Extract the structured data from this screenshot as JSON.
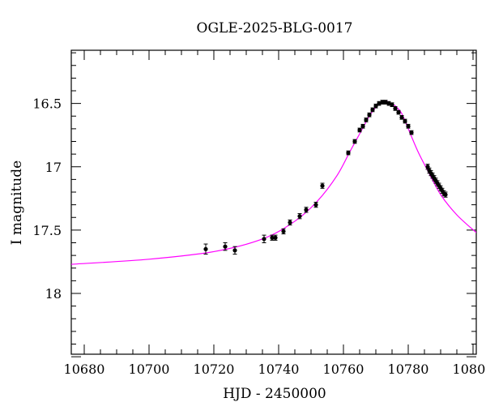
{
  "chart_data": {
    "type": "scatter",
    "title": "OGLE-2025-BLG-0017",
    "xlabel": "HJD - 2450000",
    "ylabel": "I magnitude",
    "xlim": [
      10676,
      10801
    ],
    "ylim": [
      18.48,
      16.08
    ],
    "y_inverted": true,
    "x_ticks": [
      10680,
      10700,
      10720,
      10740,
      10760,
      10780,
      10800
    ],
    "x_tick_labels": [
      "10680",
      "10700",
      "10720",
      "10740",
      "10760",
      "10780",
      "10800"
    ],
    "y_ticks": [
      16.5,
      17,
      17.5,
      18
    ],
    "y_tick_labels": [
      "16.5",
      "17",
      "17.5",
      "18"
    ],
    "grid": false,
    "colors": {
      "data": "#000000",
      "model": "#ff00ff"
    },
    "model": {
      "name": "",
      "x": [
        10676,
        10700,
        10720,
        10735,
        10745,
        10752,
        10758,
        10762,
        10765,
        10768,
        10770,
        10772,
        10773,
        10774,
        10776,
        10778,
        10780,
        10783,
        10786,
        10790,
        10795,
        10801
      ],
      "y": [
        17.77,
        17.73,
        17.67,
        17.57,
        17.43,
        17.27,
        17.07,
        16.88,
        16.74,
        16.6,
        16.53,
        16.49,
        16.48,
        16.49,
        16.52,
        16.58,
        16.7,
        16.88,
        17.03,
        17.22,
        17.38,
        17.52
      ]
    },
    "series": [
      {
        "name": "",
        "x": [
          10717.5,
          10723.5,
          10726.5,
          10735.5,
          10738,
          10739,
          10741.5,
          10743.5,
          10746.5,
          10748.5,
          10751.5,
          10753.5,
          10761.5,
          10763.5,
          10765,
          10766,
          10767,
          10768,
          10769,
          10770,
          10771,
          10772,
          10773,
          10774,
          10775,
          10776,
          10777,
          10778,
          10779,
          10780,
          10781,
          10786,
          10786.5,
          10787,
          10787.5,
          10788,
          10788.5,
          10789,
          10789.5,
          10790,
          10790.5,
          10791,
          10791.5
        ],
        "y": [
          17.65,
          17.63,
          17.66,
          17.57,
          17.56,
          17.56,
          17.51,
          17.44,
          17.39,
          17.34,
          17.3,
          17.15,
          16.89,
          16.8,
          16.71,
          16.68,
          16.63,
          16.59,
          16.55,
          16.52,
          16.5,
          16.49,
          16.49,
          16.5,
          16.51,
          16.54,
          16.57,
          16.61,
          16.64,
          16.68,
          16.73,
          17.0,
          17.03,
          17.05,
          17.07,
          17.09,
          17.11,
          17.13,
          17.15,
          17.17,
          17.19,
          17.21,
          17.22
        ],
        "err": [
          0.04,
          0.03,
          0.03,
          0.03,
          0.02,
          0.02,
          0.02,
          0.02,
          0.02,
          0.02,
          0.02,
          0.02,
          0.015,
          0.015,
          0.015,
          0.015,
          0.015,
          0.015,
          0.015,
          0.015,
          0.015,
          0.015,
          0.015,
          0.015,
          0.015,
          0.015,
          0.015,
          0.015,
          0.015,
          0.015,
          0.015,
          0.02,
          0.02,
          0.02,
          0.02,
          0.02,
          0.02,
          0.02,
          0.02,
          0.02,
          0.02,
          0.02,
          0.02
        ]
      }
    ]
  }
}
